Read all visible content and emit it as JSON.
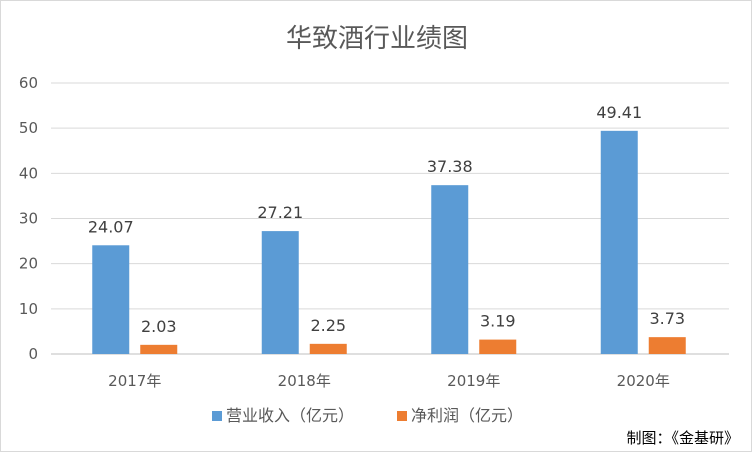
{
  "chart_data": {
    "type": "bar",
    "title": "华致酒行业绩图",
    "categories": [
      "2017年",
      "2018年",
      "2019年",
      "2020年"
    ],
    "series": [
      {
        "name": "营业收入（亿元）",
        "color": "#5b9bd5",
        "values": [
          24.07,
          27.21,
          37.38,
          49.41
        ]
      },
      {
        "name": "净利润（亿元）",
        "color": "#ed7d31",
        "values": [
          2.03,
          2.25,
          3.19,
          3.73
        ]
      }
    ],
    "data_labels": [
      [
        "24.07",
        "27.21",
        "37.38",
        "49.41"
      ],
      [
        "2.03",
        "2.25",
        "3.19",
        "3.73"
      ]
    ],
    "ylim": [
      0,
      60
    ],
    "yticks": [
      "0",
      "10",
      "20",
      "30",
      "40",
      "50",
      "60"
    ],
    "grid": true,
    "legend_position": "bottom"
  },
  "credit": "制图：《金基研》"
}
